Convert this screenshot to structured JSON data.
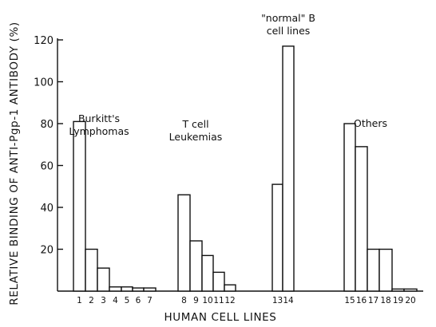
{
  "chart_data": {
    "type": "bar",
    "ylabel": "RELATIVE BINDING OF ANTI-Pgp-1 ANTIBODY (%)",
    "xlabel": "HUMAN CELL LINES",
    "ylim": [
      0,
      120
    ],
    "yticks": [
      20,
      40,
      60,
      80,
      100,
      120
    ],
    "grid": false,
    "groups": [
      {
        "label_lines": [
          "Burkitt's",
          "Lymphomas"
        ],
        "categories": [
          "1",
          "2",
          "3",
          "4",
          "5",
          "6",
          "7"
        ],
        "values": [
          81,
          20,
          11,
          2,
          2,
          1.5,
          1.5
        ]
      },
      {
        "label_lines": [
          "T cell",
          "Leukemias"
        ],
        "categories": [
          "8",
          "9",
          "10",
          "11",
          "12"
        ],
        "values": [
          46,
          24,
          17,
          9,
          3
        ]
      },
      {
        "label_lines": [
          "\"normal\" B",
          "cell lines"
        ],
        "categories": [
          "13",
          "14"
        ],
        "values": [
          51,
          117
        ]
      },
      {
        "label_lines": [
          "Others"
        ],
        "categories": [
          "15",
          "16",
          "17",
          "18",
          "19",
          "20"
        ],
        "values": [
          80,
          69,
          20,
          20,
          1,
          1
        ]
      }
    ]
  }
}
